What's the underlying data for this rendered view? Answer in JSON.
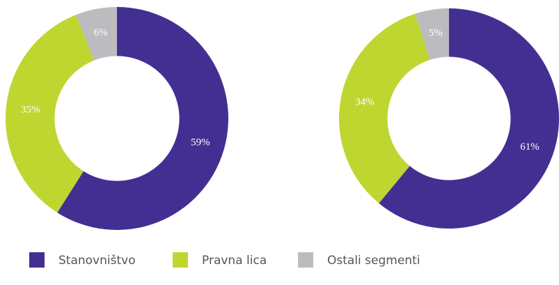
{
  "chart_data": [
    {
      "type": "pie",
      "categories": [
        "Stanovništvo",
        "Pravna lica",
        "Ostali segmenti"
      ],
      "values": [
        59,
        35,
        6
      ],
      "value_labels": [
        "59%",
        "35%",
        "6%"
      ],
      "colors": [
        "#432f92",
        "#bfd630",
        "#bcbcc0"
      ]
    },
    {
      "type": "pie",
      "categories": [
        "Stanovništvo",
        "Pravna lica",
        "Ostali segmenti"
      ],
      "values": [
        61,
        34,
        5
      ],
      "value_labels": [
        "61%",
        "34%",
        "5%"
      ],
      "colors": [
        "#432f92",
        "#bfd630",
        "#bcbcc0"
      ]
    }
  ]
}
